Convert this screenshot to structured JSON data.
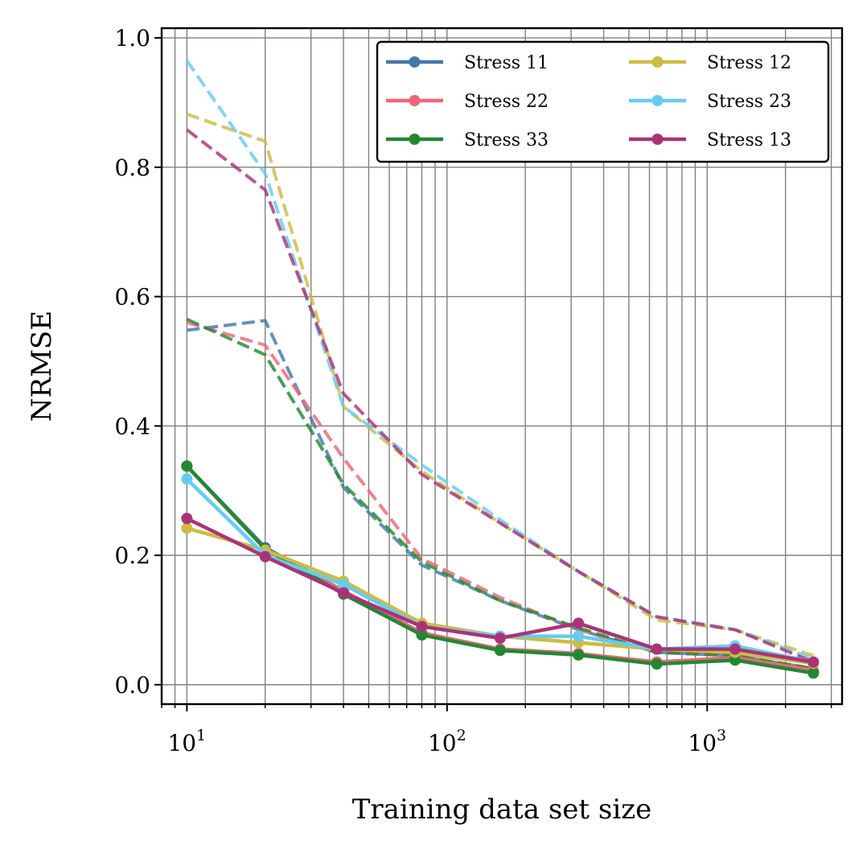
{
  "chart_data": {
    "type": "line",
    "xscale": "log",
    "xlabel": "Training data set size",
    "ylabel": "NRMSE",
    "xlim": [
      8,
      3300
    ],
    "ylim": [
      -0.03,
      1.015
    ],
    "yticks": [
      {
        "value": 0.0,
        "label": "0.0"
      },
      {
        "value": 0.2,
        "label": "0.2"
      },
      {
        "value": 0.4,
        "label": "0.4"
      },
      {
        "value": 0.6,
        "label": "0.6"
      },
      {
        "value": 0.8,
        "label": "0.8"
      },
      {
        "value": 1.0,
        "label": "1.0"
      }
    ],
    "xticks": [
      {
        "value": 10,
        "base": "10",
        "exp": "1"
      },
      {
        "value": 100,
        "base": "10",
        "exp": "2"
      },
      {
        "value": 1000,
        "base": "10",
        "exp": "3"
      }
    ],
    "grid": true,
    "legend": {
      "placement": "top-right",
      "columns": 2
    },
    "x": [
      10,
      20,
      40,
      80,
      160,
      320,
      640,
      1280,
      2560
    ],
    "series": [
      {
        "name": "Stress 11",
        "color": "#4477aa",
        "values": [
          0.338,
          0.212,
          0.145,
          0.08,
          0.055,
          0.048,
          0.035,
          0.04,
          0.02
        ],
        "dashed_values": [
          0.548,
          0.563,
          0.305,
          0.185,
          0.13,
          0.085,
          0.05,
          0.045,
          0.025
        ]
      },
      {
        "name": "Stress 22",
        "color": "#ee6677",
        "values": [
          0.338,
          0.21,
          0.145,
          0.08,
          0.055,
          0.048,
          0.035,
          0.042,
          0.022
        ],
        "dashed_values": [
          0.56,
          0.525,
          0.35,
          0.195,
          0.135,
          0.085,
          0.05,
          0.045,
          0.025
        ]
      },
      {
        "name": "Stress 33",
        "color": "#228833",
        "values": [
          0.338,
          0.21,
          0.14,
          0.077,
          0.053,
          0.046,
          0.032,
          0.038,
          0.018
        ],
        "dashed_values": [
          0.565,
          0.51,
          0.31,
          0.19,
          0.13,
          0.088,
          0.05,
          0.045,
          0.025
        ]
      },
      {
        "name": "Stress 12",
        "color": "#ccbb44",
        "values": [
          0.242,
          0.208,
          0.16,
          0.095,
          0.075,
          0.065,
          0.055,
          0.05,
          0.033
        ],
        "dashed_values": [
          0.882,
          0.84,
          0.43,
          0.33,
          0.25,
          0.175,
          0.1,
          0.085,
          0.045
        ]
      },
      {
        "name": "Stress 23",
        "color": "#66ccee",
        "values": [
          0.318,
          0.2,
          0.155,
          0.09,
          0.075,
          0.075,
          0.055,
          0.06,
          0.035
        ],
        "dashed_values": [
          0.965,
          0.79,
          0.43,
          0.34,
          0.255,
          0.175,
          0.105,
          0.085,
          0.04
        ]
      },
      {
        "name": "Stress 13",
        "color": "#aa3377",
        "values": [
          0.257,
          0.198,
          0.142,
          0.09,
          0.072,
          0.095,
          0.055,
          0.055,
          0.035
        ],
        "dashed_values": [
          0.858,
          0.765,
          0.45,
          0.325,
          0.25,
          0.175,
          0.105,
          0.085,
          0.035
        ]
      }
    ]
  }
}
